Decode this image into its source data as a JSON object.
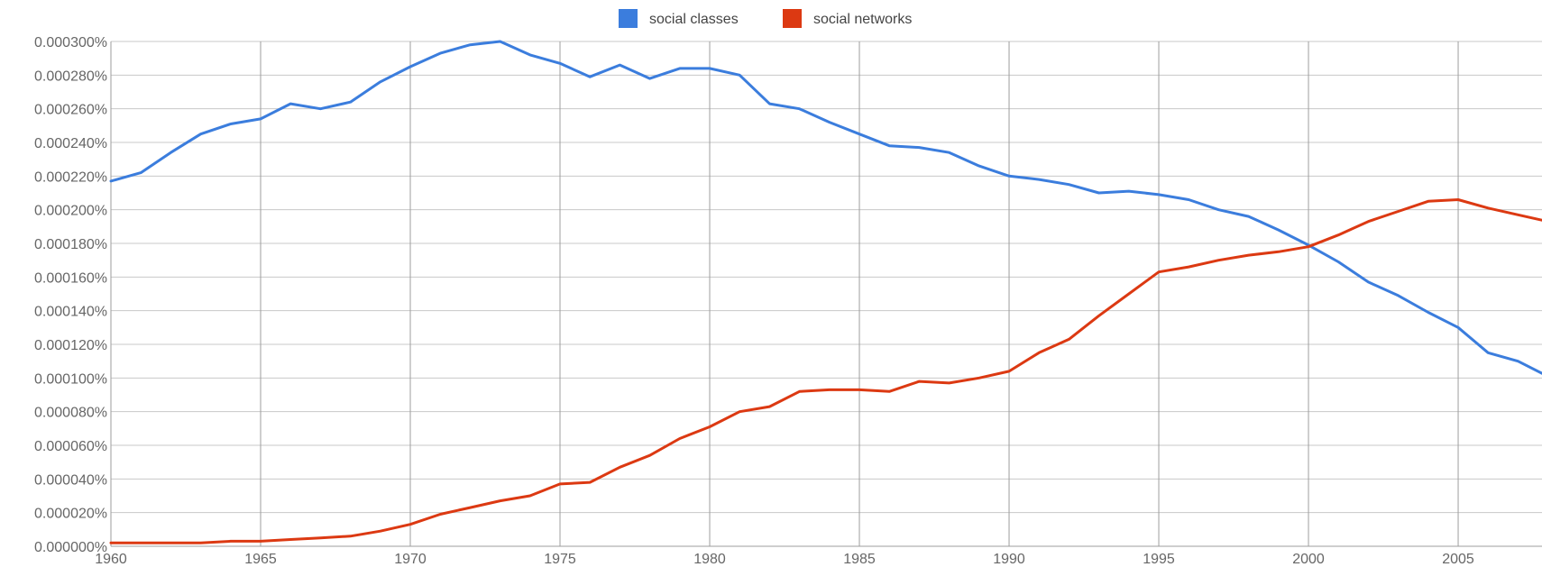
{
  "chart_data": {
    "type": "line",
    "title": "",
    "xlabel": "",
    "ylabel": "",
    "xlim": [
      1960,
      2008
    ],
    "ylim": [
      0,
      0.0003
    ],
    "grid": true,
    "legend_position": "top-center",
    "x_ticks": [
      1960,
      1965,
      1970,
      1975,
      1980,
      1985,
      1990,
      1995,
      2000,
      2005
    ],
    "x_tick_labels": [
      "1960",
      "1965",
      "1970",
      "1975",
      "1980",
      "1985",
      "1990",
      "1995",
      "2000",
      "2005"
    ],
    "y_ticks": [
      0,
      2e-05,
      4e-05,
      6e-05,
      8e-05,
      0.0001,
      0.00012,
      0.00014,
      0.00016,
      0.00018,
      0.0002,
      0.00022,
      0.00024,
      0.00026,
      0.00028,
      0.0003
    ],
    "y_tick_labels": [
      "0.000000%",
      "0.000020%",
      "0.000040%",
      "0.000060%",
      "0.000080%",
      "0.000100%",
      "0.000120%",
      "0.000140%",
      "0.000160%",
      "0.000180%",
      "0.000200%",
      "0.000220%",
      "0.000240%",
      "0.000260%",
      "0.000280%",
      "0.000300%"
    ],
    "x": [
      1960,
      1961,
      1962,
      1963,
      1964,
      1965,
      1966,
      1967,
      1968,
      1969,
      1970,
      1971,
      1972,
      1973,
      1974,
      1975,
      1976,
      1977,
      1978,
      1979,
      1980,
      1981,
      1982,
      1983,
      1984,
      1985,
      1986,
      1987,
      1988,
      1989,
      1990,
      1991,
      1992,
      1993,
      1994,
      1995,
      1996,
      1997,
      1998,
      1999,
      2000,
      2001,
      2002,
      2003,
      2004,
      2005,
      2006,
      2007,
      2008
    ],
    "series": [
      {
        "name": "social classes",
        "color": "#3b7ddd",
        "values": [
          0.000217,
          0.000222,
          0.000234,
          0.000245,
          0.000251,
          0.000254,
          0.000263,
          0.00026,
          0.000264,
          0.000276,
          0.000285,
          0.000293,
          0.000298,
          0.0003,
          0.000292,
          0.000287,
          0.000279,
          0.000286,
          0.000278,
          0.000284,
          0.000284,
          0.00028,
          0.000263,
          0.00026,
          0.000252,
          0.000245,
          0.000238,
          0.000237,
          0.000234,
          0.000226,
          0.00022,
          0.000218,
          0.000215,
          0.00021,
          0.000211,
          0.000209,
          0.000206,
          0.0002,
          0.000196,
          0.000188,
          0.000179,
          0.000169,
          0.000157,
          0.000149,
          0.000139,
          0.00013,
          0.000115,
          0.00011,
          0.000101
        ]
      },
      {
        "name": "social networks",
        "color": "#dc3912",
        "values": [
          2e-06,
          2e-06,
          2e-06,
          2e-06,
          3e-06,
          3e-06,
          4e-06,
          5e-06,
          6e-06,
          9e-06,
          1.3e-05,
          1.9e-05,
          2.3e-05,
          2.7e-05,
          3e-05,
          3.7e-05,
          3.8e-05,
          4.7e-05,
          5.4e-05,
          6.4e-05,
          7.1e-05,
          8e-05,
          8.3e-05,
          9.2e-05,
          9.3e-05,
          9.3e-05,
          9.2e-05,
          9.8e-05,
          9.7e-05,
          0.0001,
          0.000104,
          0.000115,
          0.000123,
          0.000137,
          0.00015,
          0.000163,
          0.000166,
          0.00017,
          0.000173,
          0.000175,
          0.000178,
          0.000185,
          0.000193,
          0.000199,
          0.000205,
          0.000206,
          0.000201,
          0.000197,
          0.000193
        ]
      }
    ]
  }
}
